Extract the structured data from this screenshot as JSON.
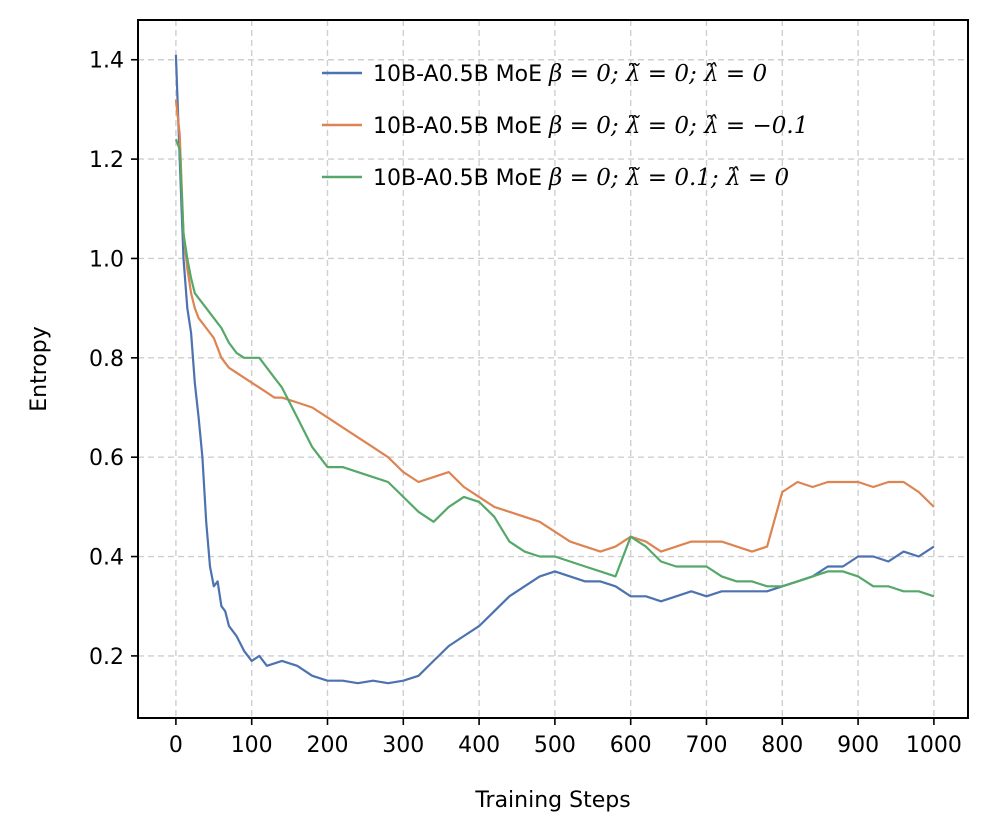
{
  "chart_data": {
    "type": "line",
    "xlabel": "Training Steps",
    "ylabel": "Entropy",
    "xlim": [
      -50,
      1045
    ],
    "ylim": [
      0.075,
      1.48
    ],
    "xticks": [
      0,
      100,
      200,
      300,
      400,
      500,
      600,
      700,
      800,
      900,
      1000
    ],
    "xtick_labels": [
      "0",
      "100",
      "200",
      "300",
      "400",
      "500",
      "600",
      "700",
      "800",
      "900",
      "1000"
    ],
    "yticks": [
      0.2,
      0.4,
      0.6,
      0.8,
      1.0,
      1.2,
      1.4
    ],
    "ytick_labels": [
      "0.2",
      "0.4",
      "0.6",
      "0.8",
      "1.0",
      "1.2",
      "1.4"
    ],
    "grid": true,
    "legend_position": "top-right",
    "series": [
      {
        "name": "10B-A0.5B MoE β=0; λ̃=0; λ̂=0",
        "legend_prefix": "10B-A0.5B MoE ",
        "legend_math": "β = 0;  λ̃ = 0;  λ̂ = 0",
        "color": "#4c72b0",
        "x": [
          0,
          5,
          10,
          15,
          20,
          25,
          30,
          35,
          40,
          45,
          50,
          55,
          60,
          65,
          70,
          80,
          90,
          100,
          110,
          120,
          140,
          160,
          180,
          200,
          220,
          240,
          260,
          280,
          300,
          320,
          340,
          360,
          380,
          400,
          420,
          440,
          460,
          480,
          500,
          520,
          540,
          560,
          580,
          600,
          620,
          640,
          660,
          680,
          700,
          720,
          740,
          760,
          780,
          800,
          820,
          840,
          860,
          880,
          900,
          920,
          940,
          960,
          980,
          1000
        ],
        "y": [
          1.41,
          1.2,
          1.0,
          0.9,
          0.85,
          0.75,
          0.68,
          0.6,
          0.47,
          0.38,
          0.34,
          0.35,
          0.3,
          0.29,
          0.26,
          0.24,
          0.21,
          0.19,
          0.2,
          0.18,
          0.19,
          0.18,
          0.16,
          0.15,
          0.15,
          0.145,
          0.15,
          0.145,
          0.15,
          0.16,
          0.19,
          0.22,
          0.24,
          0.26,
          0.29,
          0.32,
          0.34,
          0.36,
          0.37,
          0.36,
          0.35,
          0.35,
          0.34,
          0.32,
          0.32,
          0.31,
          0.32,
          0.33,
          0.32,
          0.33,
          0.33,
          0.33,
          0.33,
          0.34,
          0.35,
          0.36,
          0.38,
          0.38,
          0.4,
          0.4,
          0.39,
          0.41,
          0.4,
          0.42
        ]
      },
      {
        "name": "10B-A0.5B MoE β=0; λ̃=0; λ̂=−0.1",
        "legend_prefix": "10B-A0.5B MoE ",
        "legend_math": "β = 0;  λ̃ = 0;  λ̂ = −0.1",
        "color": "#dd8452",
        "x": [
          0,
          5,
          10,
          15,
          20,
          25,
          30,
          40,
          50,
          60,
          70,
          80,
          90,
          100,
          110,
          120,
          130,
          140,
          160,
          180,
          200,
          220,
          240,
          260,
          280,
          300,
          320,
          340,
          360,
          380,
          400,
          420,
          440,
          460,
          480,
          500,
          520,
          540,
          560,
          580,
          600,
          620,
          640,
          660,
          680,
          700,
          720,
          740,
          760,
          780,
          800,
          820,
          840,
          860,
          880,
          900,
          920,
          940,
          960,
          980,
          1000
        ],
        "y": [
          1.32,
          1.25,
          1.05,
          0.98,
          0.93,
          0.9,
          0.88,
          0.86,
          0.84,
          0.8,
          0.78,
          0.77,
          0.76,
          0.75,
          0.74,
          0.73,
          0.72,
          0.72,
          0.71,
          0.7,
          0.68,
          0.66,
          0.64,
          0.62,
          0.6,
          0.57,
          0.55,
          0.56,
          0.57,
          0.54,
          0.52,
          0.5,
          0.49,
          0.48,
          0.47,
          0.45,
          0.43,
          0.42,
          0.41,
          0.42,
          0.44,
          0.43,
          0.41,
          0.42,
          0.43,
          0.43,
          0.43,
          0.42,
          0.41,
          0.42,
          0.53,
          0.55,
          0.54,
          0.55,
          0.55,
          0.55,
          0.54,
          0.55,
          0.55,
          0.53,
          0.5
        ]
      },
      {
        "name": "10B-A0.5B MoE β=0; λ̃=0.1; λ̂=0",
        "legend_prefix": "10B-A0.5B MoE ",
        "legend_math": "β = 0;  λ̃ = 0.1;  λ̂ = 0",
        "color": "#55a868",
        "x": [
          0,
          5,
          10,
          15,
          20,
          25,
          30,
          40,
          50,
          60,
          70,
          80,
          90,
          100,
          110,
          120,
          130,
          140,
          160,
          180,
          200,
          220,
          240,
          260,
          280,
          300,
          320,
          340,
          360,
          380,
          400,
          420,
          440,
          460,
          480,
          500,
          520,
          540,
          560,
          580,
          600,
          620,
          640,
          660,
          680,
          700,
          720,
          740,
          760,
          780,
          800,
          820,
          840,
          860,
          880,
          900,
          920,
          940,
          960,
          980,
          1000
        ],
        "y": [
          1.24,
          1.22,
          1.05,
          1.0,
          0.96,
          0.93,
          0.92,
          0.9,
          0.88,
          0.86,
          0.83,
          0.81,
          0.8,
          0.8,
          0.8,
          0.78,
          0.76,
          0.74,
          0.68,
          0.62,
          0.58,
          0.58,
          0.57,
          0.56,
          0.55,
          0.52,
          0.49,
          0.47,
          0.5,
          0.52,
          0.51,
          0.48,
          0.43,
          0.41,
          0.4,
          0.4,
          0.39,
          0.38,
          0.37,
          0.36,
          0.44,
          0.42,
          0.39,
          0.38,
          0.38,
          0.38,
          0.36,
          0.35,
          0.35,
          0.34,
          0.34,
          0.35,
          0.36,
          0.37,
          0.37,
          0.36,
          0.34,
          0.34,
          0.33,
          0.33,
          0.32
        ]
      }
    ]
  }
}
